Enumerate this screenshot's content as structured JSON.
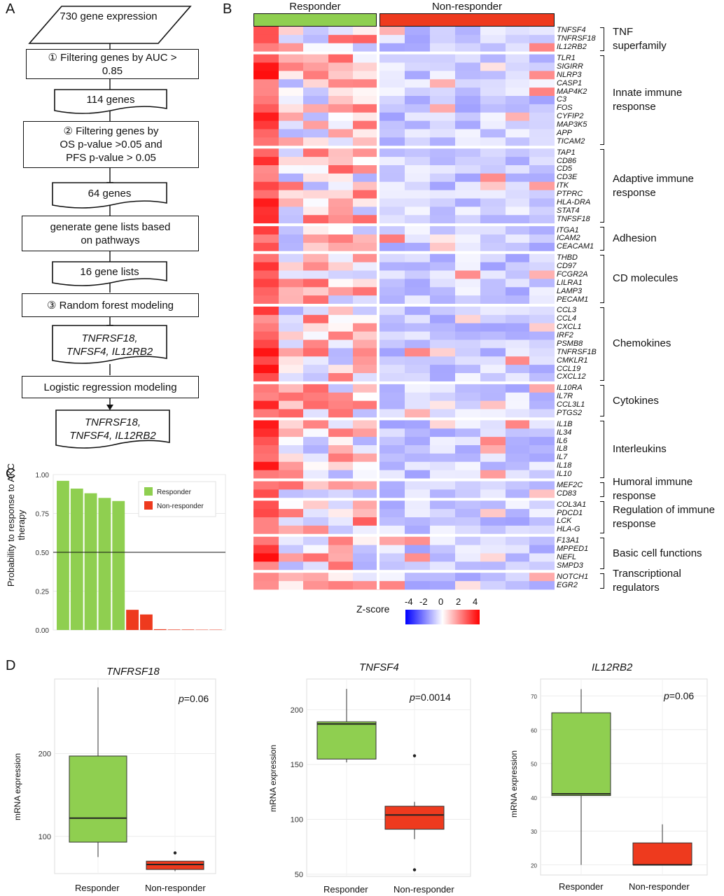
{
  "panel_labels": {
    "a": "A",
    "b": "B",
    "c": "C",
    "d": "D"
  },
  "flow": {
    "b1": "730 gene expression",
    "b2": "① Filtering genes by AUC > 0.85",
    "b3": "114 genes",
    "b4a": "② Filtering genes by",
    "b4b": "OS p-value >0.05 and",
    "b4c": "PFS p-value > 0.05",
    "b5": "64 genes",
    "b6": "generate gene lists based on pathways",
    "b7": "16 gene lists",
    "b8": "③ Random forest modeling",
    "b9a": "TNFRSF18,",
    "b9b": "TNFSF4, IL12RB2",
    "b10": "Logistic regression modeling",
    "b11a": "TNFRSF18,",
    "b11b": "TNFSF4, IL12RB2"
  },
  "heatmap": {
    "header_responder": "Responder",
    "header_nonresponder": "Non-responder",
    "colors": {
      "responder": "#8fcf50",
      "nonresponder": "#ee3a1e"
    },
    "groups": [
      {
        "name_lines": [
          "TNF",
          "superfamily"
        ],
        "genes": [
          "TNFSF4",
          "TNFRSF18",
          "IL12RB2"
        ]
      },
      {
        "name_lines": [
          "Innate immune",
          "response"
        ],
        "genes": [
          "TLR1",
          "SIGIRR",
          "NLRP3",
          "CASP1",
          "MAP4K2",
          "C3",
          "FOS",
          "CYFIP2",
          "MAP3K5",
          "APP",
          "TICAM2"
        ]
      },
      {
        "name_lines": [
          "Adaptive immune",
          "response"
        ],
        "genes": [
          "TAP1",
          "CD86",
          "CD5",
          "CD3E",
          "ITK",
          "PTPRC",
          "HLA-DRA",
          "STAT4",
          "TNFSF18"
        ]
      },
      {
        "name_lines": [
          "Adhesion"
        ],
        "genes": [
          "ITGA1",
          "ICAM2",
          "CEACAM1"
        ]
      },
      {
        "name_lines": [
          "CD molecules"
        ],
        "genes": [
          "THBD",
          "CD97",
          "FCGR2A",
          "LILRA1",
          "LAMP3",
          "PECAM1"
        ]
      },
      {
        "name_lines": [
          "Chemokines"
        ],
        "genes": [
          "CCL3",
          "CCL4",
          "CXCL1",
          "IRF2",
          "PSMB8",
          "TNFRSF1B",
          "CMKLR1",
          "CCL19",
          "CXCL12"
        ]
      },
      {
        "name_lines": [
          "Cytokines"
        ],
        "genes": [
          "IL10RA",
          "IL7R",
          "CCL3L1",
          "PTGS2"
        ]
      },
      {
        "name_lines": [
          "Interleukins"
        ],
        "genes": [
          "IL1B",
          "IL34",
          "IL6",
          "IL8",
          "IL7",
          "IL18",
          "IL10"
        ]
      },
      {
        "name_lines": [
          "Humoral immune",
          "response"
        ],
        "genes": [
          "MEF2C",
          "CD83"
        ]
      },
      {
        "name_lines": [
          "Regulation of immune",
          "response"
        ],
        "genes": [
          "COL3A1",
          "PDCD1",
          "LCK",
          "HLA-G"
        ]
      },
      {
        "name_lines": [
          "Basic cell functions"
        ],
        "genes": [
          "F13A1",
          "MPPED1",
          "NEFL",
          "SMPD3"
        ]
      },
      {
        "name_lines": [
          "Transcriptional",
          "regulators"
        ],
        "genes": [
          "NOTCH1",
          "EGR2"
        ]
      }
    ],
    "zscore_label": "Z-score",
    "zscore_ticks": [
      "-4",
      "-2",
      "0",
      "2",
      "4"
    ]
  },
  "chart_data": [
    {
      "type": "bar",
      "ylabel": "Probability to response to AKC therapy",
      "ylim": [
        0,
        1
      ],
      "yticks": [
        "0.00",
        "0.25",
        "0.50",
        "0.75",
        "1.00"
      ],
      "threshold": 0.5,
      "legend": {
        "position": "top-right"
      },
      "series": [
        {
          "name": "Responder",
          "color": "#8fcf50",
          "values": [
            0.96,
            0.91,
            0.88,
            0.85,
            0.83,
            null,
            null,
            null,
            null,
            null,
            null,
            null
          ]
        },
        {
          "name": "Non-responder",
          "color": "#ee3a1e",
          "values": [
            null,
            null,
            null,
            null,
            null,
            0.13,
            0.1,
            0.005,
            0.003,
            0.003,
            0.002,
            0.002
          ]
        }
      ]
    },
    {
      "type": "box",
      "title": "TNFRSF18",
      "ylabel": "mRNA expression",
      "ylim": [
        55,
        290
      ],
      "yticks": [
        "100",
        "200"
      ],
      "p_label": "p",
      "p_value": "=0.06",
      "categories": [
        "Responder",
        "Non-responder"
      ],
      "boxes": [
        {
          "min": 75,
          "q1": 93,
          "median": 122,
          "q3": 197,
          "max": 280,
          "outliers": [],
          "color": "#8fcf50"
        },
        {
          "min": 58,
          "q1": 60,
          "median": 66,
          "q3": 70,
          "max": 70,
          "outliers": [
            80
          ],
          "color": "#ee3a1e"
        }
      ]
    },
    {
      "type": "box",
      "title": "TNFSF4",
      "ylabel": "mRNA expression",
      "ylim": [
        48,
        228
      ],
      "yticks": [
        "50",
        "100",
        "150",
        "200"
      ],
      "p_label": "p",
      "p_value": "=0.0014",
      "categories": [
        "Responder",
        "Non-responder"
      ],
      "boxes": [
        {
          "min": 152,
          "q1": 155,
          "median": 187,
          "q3": 189,
          "max": 219,
          "outliers": [],
          "color": "#8fcf50"
        },
        {
          "min": 82,
          "q1": 91,
          "median": 104,
          "q3": 112,
          "max": 116,
          "outliers": [
            158,
            54
          ],
          "color": "#ee3a1e"
        }
      ]
    },
    {
      "type": "box",
      "title": "IL12RB2",
      "ylabel": "mRNA expression",
      "ylim": [
        17,
        75
      ],
      "yticks": [
        "20",
        "30",
        "40",
        "50",
        "60",
        "70"
      ],
      "p_label": "p",
      "p_value": "=0.06",
      "categories": [
        "Responder",
        "Non-responder"
      ],
      "boxes": [
        {
          "min": 20,
          "q1": 40.5,
          "median": 41,
          "q3": 65,
          "max": 72,
          "outliers": [],
          "color": "#8fcf50"
        },
        {
          "min": 20,
          "q1": 20,
          "median": 20,
          "q3": 26.5,
          "max": 32,
          "outliers": [],
          "color": "#ee3a1e"
        }
      ]
    }
  ]
}
